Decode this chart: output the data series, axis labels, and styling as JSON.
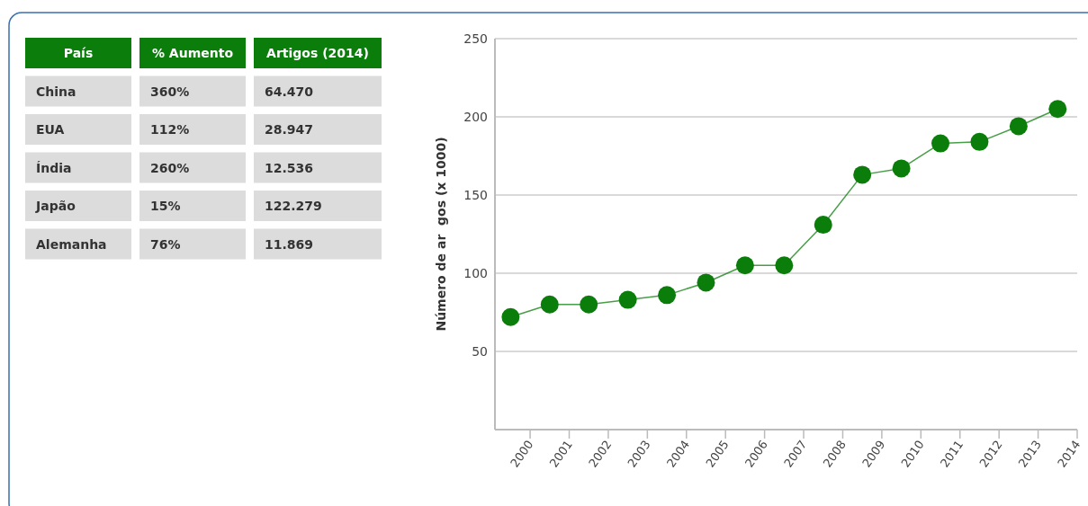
{
  "chart_data": [
    {
      "type": "other",
      "categories": [
        "País",
        "% Aumento",
        "Artigos (2014)"
      ],
      "y_categories": [
        "China",
        "EUA",
        "Índia",
        "Japão",
        "Alemanha"
      ],
      "cell_labels": [
        [
          "360%",
          "64.470"
        ],
        [
          "112%",
          "28.947"
        ],
        [
          "260%",
          "12.536"
        ],
        [
          "15%",
          "122.279"
        ],
        [
          "76%",
          "11.869"
        ]
      ]
    },
    {
      "type": "line",
      "ylabel": "Número de ar  gos (x 1000)",
      "x": [
        1999.5,
        2000.5,
        2001.5,
        2002.5,
        2003.5,
        2004.5,
        2005.5,
        2006.5,
        2007.5,
        2008.5,
        2009.5,
        2010.5,
        2011.5,
        2012.5,
        2013.5
      ],
      "series": [
        {
          "color": "#0b7d0b",
          "values": [
            72,
            80,
            80,
            83,
            86,
            94,
            105,
            105,
            131,
            163,
            167,
            183,
            184,
            194,
            205
          ]
        }
      ],
      "xlim": [
        1999.1,
        2014
      ],
      "xticks": [
        2000,
        2001,
        2002,
        2003,
        2004,
        2005,
        2006,
        2007,
        2008,
        2009,
        2010,
        2011,
        2012,
        2013,
        2014
      ],
      "ylim": [
        0,
        250
      ],
      "yticks": [
        50,
        100,
        150,
        200,
        250
      ],
      "grid": "y",
      "marker": "circle",
      "line_style": "solid"
    }
  ]
}
